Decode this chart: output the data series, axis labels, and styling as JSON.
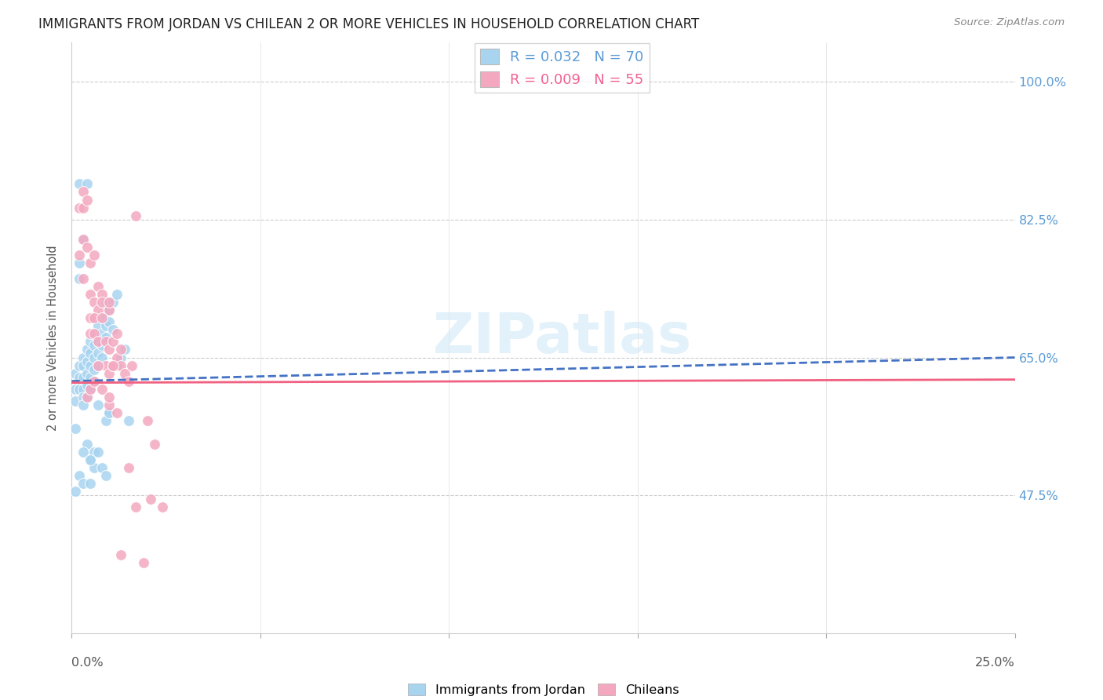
{
  "title": "IMMIGRANTS FROM JORDAN VS CHILEAN 2 OR MORE VEHICLES IN HOUSEHOLD CORRELATION CHART",
  "source": "Source: ZipAtlas.com",
  "ylabel": "2 or more Vehicles in Household",
  "ytick_labels": [
    "100.0%",
    "82.5%",
    "65.0%",
    "47.5%"
  ],
  "ytick_values": [
    1.0,
    0.825,
    0.65,
    0.475
  ],
  "xmin": 0.0,
  "xmax": 0.25,
  "ymin": 0.3,
  "ymax": 1.05,
  "watermark": "ZIPatlas",
  "jordan_color": "#a8d4f0",
  "chilean_color": "#f4a8c0",
  "jordan_line_color": "#4472c4",
  "chilean_line_color": "#f06080",
  "jordan_r": 0.032,
  "jordan_n": 70,
  "chilean_r": 0.009,
  "chilean_n": 55,
  "jordan_line_x0": 0.0,
  "jordan_line_x1": 0.25,
  "jordan_line_y0": 0.62,
  "jordan_line_y1": 0.65,
  "chilean_line_x0": 0.0,
  "chilean_line_x1": 0.25,
  "chilean_line_y0": 0.618,
  "chilean_line_y1": 0.622,
  "jordan_x": [
    0.001,
    0.001,
    0.001,
    0.002,
    0.002,
    0.002,
    0.002,
    0.002,
    0.003,
    0.003,
    0.003,
    0.003,
    0.003,
    0.003,
    0.004,
    0.004,
    0.004,
    0.004,
    0.004,
    0.005,
    0.005,
    0.005,
    0.005,
    0.005,
    0.006,
    0.006,
    0.006,
    0.006,
    0.006,
    0.007,
    0.007,
    0.007,
    0.007,
    0.008,
    0.008,
    0.008,
    0.008,
    0.009,
    0.009,
    0.009,
    0.01,
    0.01,
    0.01,
    0.011,
    0.011,
    0.012,
    0.012,
    0.013,
    0.014,
    0.015,
    0.001,
    0.002,
    0.003,
    0.004,
    0.005,
    0.006,
    0.002,
    0.003,
    0.004,
    0.005,
    0.006,
    0.007,
    0.008,
    0.009,
    0.01,
    0.001,
    0.003,
    0.005,
    0.007,
    0.009
  ],
  "jordan_y": [
    0.63,
    0.61,
    0.595,
    0.64,
    0.625,
    0.61,
    0.75,
    0.77,
    0.65,
    0.64,
    0.625,
    0.61,
    0.6,
    0.59,
    0.66,
    0.645,
    0.63,
    0.615,
    0.6,
    0.67,
    0.655,
    0.64,
    0.625,
    0.61,
    0.68,
    0.665,
    0.65,
    0.635,
    0.62,
    0.69,
    0.67,
    0.655,
    0.64,
    0.7,
    0.68,
    0.665,
    0.65,
    0.72,
    0.69,
    0.675,
    0.71,
    0.695,
    0.58,
    0.72,
    0.685,
    0.73,
    0.64,
    0.65,
    0.66,
    0.57,
    0.48,
    0.5,
    0.49,
    0.54,
    0.52,
    0.53,
    0.87,
    0.8,
    0.87,
    0.49,
    0.51,
    0.53,
    0.51,
    0.57,
    0.58,
    0.56,
    0.53,
    0.52,
    0.59,
    0.5
  ],
  "chilean_x": [
    0.002,
    0.002,
    0.003,
    0.003,
    0.003,
    0.004,
    0.004,
    0.005,
    0.005,
    0.005,
    0.006,
    0.006,
    0.006,
    0.007,
    0.007,
    0.007,
    0.008,
    0.008,
    0.009,
    0.009,
    0.01,
    0.01,
    0.01,
    0.011,
    0.011,
    0.012,
    0.012,
    0.013,
    0.013,
    0.014,
    0.015,
    0.016,
    0.017,
    0.003,
    0.005,
    0.006,
    0.007,
    0.008,
    0.01,
    0.011,
    0.004,
    0.005,
    0.006,
    0.008,
    0.01,
    0.012,
    0.015,
    0.019,
    0.02,
    0.022,
    0.024,
    0.013,
    0.017,
    0.021,
    0.01
  ],
  "chilean_y": [
    0.84,
    0.78,
    0.84,
    0.8,
    0.86,
    0.79,
    0.85,
    0.77,
    0.73,
    0.68,
    0.78,
    0.72,
    0.68,
    0.74,
    0.71,
    0.67,
    0.73,
    0.72,
    0.67,
    0.64,
    0.71,
    0.66,
    0.63,
    0.67,
    0.64,
    0.68,
    0.65,
    0.66,
    0.64,
    0.63,
    0.62,
    0.64,
    0.83,
    0.75,
    0.7,
    0.7,
    0.64,
    0.7,
    0.59,
    0.64,
    0.6,
    0.61,
    0.62,
    0.61,
    0.6,
    0.58,
    0.51,
    0.39,
    0.57,
    0.54,
    0.46,
    0.4,
    0.46,
    0.47,
    0.72
  ]
}
